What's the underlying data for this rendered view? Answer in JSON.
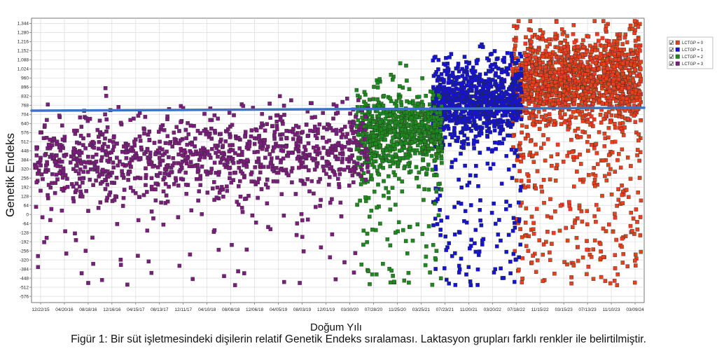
{
  "caption": "Figür 1: Bir süt işletmesindeki dişilerin relatif Genetik Endeks sıralaması. Laktasyon grupları farklı renkler ile belirtilmiştir.",
  "chart_data": {
    "type": "scatter",
    "xlabel": "Doğum Yılı",
    "ylabel": "Genetik Endeks",
    "x_tick_labels": [
      "12/22/15",
      "04/20/16",
      "08/18/16",
      "12/16/16",
      "04/15/17",
      "08/13/17",
      "12/11/17",
      "04/10/18",
      "08/08/18",
      "12/06/18",
      "04/05/19",
      "08/03/19",
      "12/01/19",
      "03/30/20",
      "07/28/20",
      "11/25/20",
      "03/25/21",
      "07/23/21",
      "11/20/21",
      "03/20/22",
      "07/18/22",
      "11/15/22",
      "03/15/23",
      "07/13/23",
      "11/10/23",
      "03/09/24"
    ],
    "y_ticks": [
      -576,
      -512,
      -448,
      -384,
      -320,
      -256,
      -192,
      -128,
      -64,
      0,
      64,
      128,
      192,
      256,
      320,
      384,
      448,
      512,
      576,
      640,
      704,
      768,
      832,
      896,
      960,
      1024,
      1088,
      1152,
      1216,
      1280,
      1344
    ],
    "y_tick_labels": [
      "-576",
      "-512",
      "-448",
      "-384",
      "-320",
      "-256",
      "-192",
      "-128",
      "-64",
      "0",
      "64",
      "128",
      "192",
      "256",
      "320",
      "384",
      "448",
      "512",
      "576",
      "640",
      "704",
      "768",
      "832",
      "896",
      "960",
      "1,024",
      "1,088",
      "1,152",
      "1,216",
      "1,280",
      "1,344"
    ],
    "ylim": [
      -620,
      1380
    ],
    "grid": true,
    "legend_position": "top-right",
    "trend_line": {
      "color": "#3d73c4",
      "y_start": 730,
      "y_end": 750
    },
    "series": [
      {
        "name": "LCTGP = 0",
        "color": "#e8401c",
        "x_range": [
          0.785,
          0.995
        ],
        "mean": 940,
        "spread": 160,
        "outlier_rate": 0.17,
        "count": 1700,
        "checked": true
      },
      {
        "name": "LCTGP = 1",
        "color": "#1414d0",
        "x_range": [
          0.655,
          0.8
        ],
        "mean": 790,
        "spread": 140,
        "outlier_rate": 0.12,
        "count": 1000,
        "checked": true
      },
      {
        "name": "LCTGP = 2",
        "color": "#1e8a1e",
        "x_range": [
          0.53,
          0.67
        ],
        "mean": 590,
        "spread": 145,
        "outlier_rate": 0.12,
        "count": 800,
        "checked": true
      },
      {
        "name": "LCTGP = 3",
        "color": "#7a1d7c",
        "x_range": [
          0.005,
          0.55
        ],
        "mean": 420,
        "spread": 150,
        "outlier_rate": 0.07,
        "count": 1100,
        "checked": true
      }
    ]
  }
}
